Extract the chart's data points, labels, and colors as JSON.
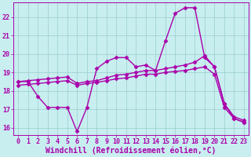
{
  "background_color": "#c8eef0",
  "grid_color": "#99cccc",
  "line_color": "#aa00aa",
  "marker": "D",
  "markersize": 2.5,
  "linewidth": 1.0,
  "xlabel": "Windchill (Refroidissement éolien,°C)",
  "xlabel_fontsize": 7,
  "tick_fontsize": 6,
  "ylim": [
    15.6,
    22.8
  ],
  "xlim": [
    -0.5,
    23.5
  ],
  "yticks": [
    16,
    17,
    18,
    19,
    20,
    21,
    22
  ],
  "xticks": [
    0,
    1,
    2,
    3,
    4,
    5,
    6,
    7,
    8,
    9,
    10,
    11,
    12,
    13,
    14,
    15,
    16,
    17,
    18,
    19,
    20,
    21,
    22,
    23
  ],
  "series": [
    [
      18.5,
      18.5,
      17.7,
      17.1,
      17.1,
      17.1,
      15.8,
      17.1,
      19.2,
      19.6,
      19.8,
      19.8,
      19.3,
      19.4,
      19.1,
      20.7,
      22.2,
      22.5,
      22.5,
      19.8,
      19.3,
      17.3,
      16.5,
      16.3
    ],
    [
      18.5,
      18.55,
      18.6,
      18.65,
      18.7,
      18.75,
      18.4,
      18.5,
      18.55,
      18.7,
      18.85,
      18.9,
      19.0,
      19.1,
      19.1,
      19.2,
      19.3,
      19.4,
      19.55,
      19.9,
      19.3,
      17.3,
      16.6,
      16.4
    ],
    [
      18.3,
      18.35,
      18.4,
      18.45,
      18.5,
      18.55,
      18.3,
      18.4,
      18.45,
      18.55,
      18.65,
      18.7,
      18.8,
      18.9,
      18.9,
      19.0,
      19.05,
      19.1,
      19.2,
      19.3,
      18.9,
      17.1,
      16.5,
      16.3
    ]
  ]
}
